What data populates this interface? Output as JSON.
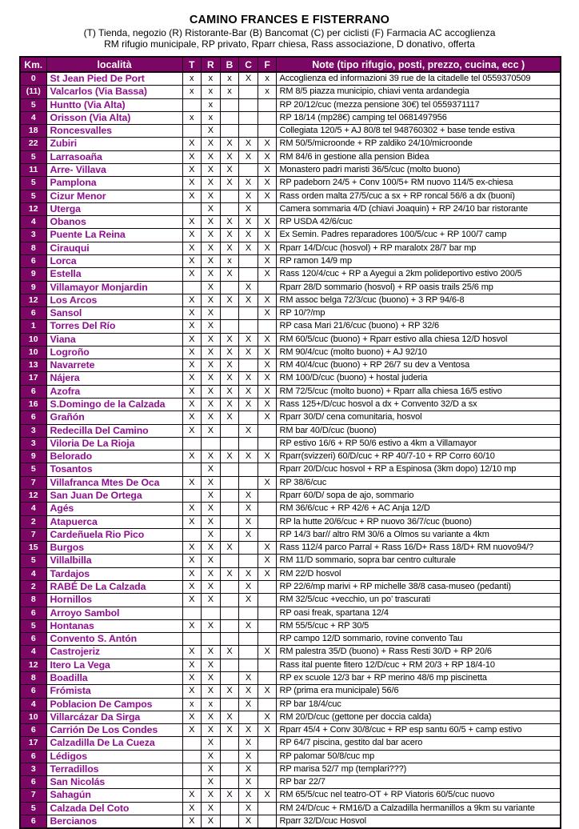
{
  "colors": {
    "accent": "#7b0663",
    "locality_text": "#8e108e",
    "border": "#140310"
  },
  "title_block": {
    "title": "CAMINO FRANCES E FISTERRANO",
    "legend_line1": "(T) Tienda, negozio (R) Ristorante-Bar (B) Bancomat (C) per ciclisti (F) Farmacia AC accoglienza",
    "legend_line2": "RM rifugio municipale, RP privato, Rparr chiesa, Rass associazione, D donativo, offerta"
  },
  "table": {
    "headers": {
      "km": "Km.",
      "locality": "località",
      "t": "T",
      "r": "R",
      "b": "B",
      "c": "C",
      "f": "F",
      "note": "Note (tipo rifugio, posti, prezzo, cucina, ecc )"
    },
    "rows": [
      {
        "km": "0",
        "name": "St Jean Pied De Port",
        "t": "x",
        "r": "x",
        "b": "x",
        "c": "X",
        "f": "x",
        "note": "Accoglienza ed informazioni 39 rue de la citadelle tel 0559370509"
      },
      {
        "km": "(11)",
        "name": "Valcarlos (Via Bassa)",
        "t": "x",
        "r": "x",
        "b": "x",
        "c": "",
        "f": "x",
        "note": "RM 8/5 piazza municipio, chiavi venta ardandegia"
      },
      {
        "km": "5",
        "name": "Huntto (Via Alta)",
        "t": "",
        "r": "x",
        "b": "",
        "c": "",
        "f": "",
        "note": "RP 20/12/cuc (mezza pensione 30€) tel 0559371117"
      },
      {
        "km": "4",
        "name": "Orisson (Via Alta)",
        "t": "x",
        "r": "x",
        "b": "",
        "c": "",
        "f": "",
        "note": "RP 18/14 (mp28€) camping tel 0681497956"
      },
      {
        "km": "18",
        "name": "Roncesvalles",
        "t": "",
        "r": "X",
        "b": "",
        "c": "",
        "f": "",
        "note": "Collegiata 120/5 + AJ 80/8 tel 948760302 + base tende estiva"
      },
      {
        "km": "22",
        "name": "Zubiri",
        "t": "X",
        "r": "X",
        "b": "X",
        "c": "X",
        "f": "X",
        "note": "RM 50/5/microonde + RP zaldiko 24/10/microonde"
      },
      {
        "km": "5",
        "name": "Larrasoaña",
        "t": "X",
        "r": "X",
        "b": "X",
        "c": "X",
        "f": "X",
        "note": "RM 84/6 in gestione alla pension Bidea"
      },
      {
        "km": "11",
        "name": "Arre- Villava",
        "t": "X",
        "r": "X",
        "b": "X",
        "c": "",
        "f": "X",
        "note": "Monastero padri maristi 36/5/cuc (molto buono)"
      },
      {
        "km": "5",
        "name": "Pamplona",
        "t": "X",
        "r": "X",
        "b": "X",
        "c": "X",
        "f": "X",
        "note": "RP padeborn 24/5 + Conv 100/5+ RM nuovo 114/5 ex-chiesa"
      },
      {
        "km": "5",
        "name": "Cizur Menor",
        "t": "X",
        "r": "X",
        "b": "",
        "c": "X",
        "f": "X",
        "note": "Rass orden malta 27/5/cuc a sx + RP roncal 56/6 a dx (buoni)"
      },
      {
        "km": "12",
        "name": "Uterga",
        "t": "",
        "r": "X",
        "b": "",
        "c": "X",
        "f": "",
        "note": "Camera sommaria 4/D (chiavi Joaquin) +  RP 24/10 bar ristorante"
      },
      {
        "km": "4",
        "name": "Obanos",
        "t": "X",
        "r": "X",
        "b": "X",
        "c": "X",
        "f": "X",
        "note": "RP USDA 42/6/cuc"
      },
      {
        "km": "3",
        "name": "Puente La Reina",
        "t": "X",
        "r": "X",
        "b": "X",
        "c": "X",
        "f": "X",
        "note": "Ex Semin. Padres reparadores 100/5/cuc  + RP 100/7 camp"
      },
      {
        "km": "8",
        "name": "Cirauqui",
        "t": "X",
        "r": "X",
        "b": "X",
        "c": "X",
        "f": "X",
        "note": "Rparr 14/D/cuc (hosvol) + RP maralotx 28/7 bar mp"
      },
      {
        "km": "6",
        "name": "Lorca",
        "t": "X",
        "r": "X",
        "b": "x",
        "c": "",
        "f": "X",
        "note": "RP ramon 14/9 mp"
      },
      {
        "km": "9",
        "name": "Estella",
        "t": "X",
        "r": "X",
        "b": "X",
        "c": "",
        "f": "X",
        "note": "Rass 120/4/cuc + RP a Ayegui a 2km polideportivo estivo 200/5"
      },
      {
        "km": "9",
        "name": "Villamayor Monjardin",
        "t": "",
        "r": "X",
        "b": "",
        "c": "X",
        "f": "",
        "note": "Rparr 28/D sommario (hosvol) + RP oasis trails 25/6 mp"
      },
      {
        "km": "12",
        "name": "Los Arcos",
        "t": "X",
        "r": "X",
        "b": "X",
        "c": "X",
        "f": "X",
        "note": "RM assoc belga 72/3/cuc (buono) + 3 RP 94/6-8"
      },
      {
        "km": "6",
        "name": "Sansol",
        "t": "X",
        "r": "X",
        "b": "",
        "c": "",
        "f": "X",
        "note": "RP 10/?/mp"
      },
      {
        "km": "1",
        "name": "Torres Del Río",
        "t": "X",
        "r": "X",
        "b": "",
        "c": "",
        "f": "",
        "note": "RP casa Mari 21/6/cuc (buono) + RP 32/6"
      },
      {
        "km": "10",
        "name": "Viana",
        "t": "X",
        "r": "X",
        "b": "X",
        "c": "X",
        "f": "X",
        "note": "RM 60/5/cuc (buono) + Rparr estivo alla chiesa 12/D hosvol"
      },
      {
        "km": "10",
        "name": "Logroño",
        "t": "X",
        "r": "X",
        "b": "X",
        "c": "X",
        "f": "X",
        "note": "RM 90/4/cuc (molto buono) +  AJ 92/10"
      },
      {
        "km": "13",
        "name": "Navarrete",
        "t": "X",
        "r": "X",
        "b": "X",
        "c": "",
        "f": "X",
        "note": "RM 40/4/cuc (buono) + RP 26/7 su dev a Ventosa"
      },
      {
        "km": "17",
        "name": "Nájera",
        "t": "X",
        "r": "X",
        "b": "X",
        "c": "X",
        "f": "X",
        "note": "RM 100/D/cuc (buono) + hostal juderia"
      },
      {
        "km": "6",
        "name": "Azofra",
        "t": "X",
        "r": "X",
        "b": "X",
        "c": "X",
        "f": "X",
        "note": "RM 72/5/cuc (molto buono) + Rparr alla chiesa 16/5 estivo"
      },
      {
        "km": "16",
        "name": "S.Domingo de la Calzada",
        "t": "X",
        "r": "X",
        "b": "X",
        "c": "X",
        "f": "X",
        "note": "Rass 125+/D/cuc hosvol  a dx + Convento 32/D a sx"
      },
      {
        "km": "6",
        "name": "Grañón",
        "t": "X",
        "r": "X",
        "b": "X",
        "c": "",
        "f": "X",
        "note": "Rparr 30/D/ cena comunitaria, hosvol"
      },
      {
        "km": "3",
        "name": "Redecilla Del Camino",
        "t": "X",
        "r": "X",
        "b": "",
        "c": "X",
        "f": "",
        "note": "RM bar 40/D/cuc (buono)"
      },
      {
        "km": "3",
        "name": "Viloria De La Rioja",
        "t": "",
        "r": "",
        "b": "",
        "c": "",
        "f": "",
        "note": "RP estivo 16/6 + RP 50/6 estivo a 4km a Villamayor"
      },
      {
        "km": "9",
        "name": "Belorado",
        "t": "X",
        "r": "X",
        "b": "X",
        "c": "X",
        "f": "X",
        "note": "Rparr(svizzeri) 60/D/cuc + RP 40/7-10 + RP Corro 60/10"
      },
      {
        "km": "5",
        "name": "Tosantos",
        "t": "",
        "r": "X",
        "b": "",
        "c": "",
        "f": "",
        "note": "Rparr 20/D/cuc hosvol + RP a Espinosa (3km dopo) 12/10 mp"
      },
      {
        "km": "7",
        "name": "Villafranca Mtes De Oca",
        "t": "X",
        "r": "X",
        "b": "",
        "c": "",
        "f": "X",
        "note": "RP 38/6/cuc"
      },
      {
        "km": "12",
        "name": "San Juan De Ortega",
        "t": "",
        "r": "X",
        "b": "",
        "c": "X",
        "f": "",
        "note": "Rparr 60/D/ sopa de ajo, sommario"
      },
      {
        "km": "4",
        "name": "Agés",
        "t": "X",
        "r": "X",
        "b": "",
        "c": "X",
        "f": "",
        "note": "RM 36/6/cuc + RP 42/6 + AC Anja 12/D"
      },
      {
        "km": "2",
        "name": "Atapuerca",
        "t": "X",
        "r": "X",
        "b": "",
        "c": "X",
        "f": "",
        "note": "RP la hutte 20/6/cuc + RP nuovo 36/7/cuc (buono)"
      },
      {
        "km": "7",
        "name": "Cardeñuela Rio Pico",
        "t": "",
        "r": "X",
        "b": "",
        "c": "X",
        "f": "",
        "note": "RP 14/3 bar// altro RM 30/6 a Olmos su variante a 4km"
      },
      {
        "km": "15",
        "name": "Burgos",
        "t": "X",
        "r": "X",
        "b": "X",
        "c": "",
        "f": "X",
        "note": "Rass 112/4 parco Parral + Rass 16/D+ Rass 18/D+ RM nuovo94/?"
      },
      {
        "km": "5",
        "name": "Villalbilla",
        "t": "X",
        "r": "X",
        "b": "",
        "c": "",
        "f": "X",
        "note": "RM 11/D sommario, sopra bar centro culturale"
      },
      {
        "km": "4",
        "name": "Tardajos",
        "t": "X",
        "r": "X",
        "b": "X",
        "c": "X",
        "f": "X",
        "note": "RM 22/D hosvol"
      },
      {
        "km": "2",
        "name": "RABÉ De La Calzada",
        "t": "X",
        "r": "X",
        "b": "",
        "c": "X",
        "f": "",
        "note": "RP 22/6/mp marivi + RP michelle 38/8 casa-museo (pedanti)"
      },
      {
        "km": "8",
        "name": "Hornillos",
        "t": "X",
        "r": "X",
        "b": "",
        "c": "X",
        "f": "",
        "note": "RM 32/5/cuc +vecchio, un po’ trascurati"
      },
      {
        "km": "6",
        "name": "Arroyo Sambol",
        "t": "",
        "r": "",
        "b": "",
        "c": "",
        "f": "",
        "note": "RP oasi freak, spartana 12/4"
      },
      {
        "km": "5",
        "name": "Hontanas",
        "t": "X",
        "r": "X",
        "b": "",
        "c": "X",
        "f": "",
        "note": "RM 55/5/cuc + RP 30/5"
      },
      {
        "km": "6",
        "name": "Convento S. Antón",
        "t": "",
        "r": "",
        "b": "",
        "c": "",
        "f": "",
        "note": "RP campo 12/D sommario, rovine convento Tau"
      },
      {
        "km": "4",
        "name": "Castrojeriz",
        "t": "X",
        "r": "X",
        "b": "X",
        "c": "",
        "f": "X",
        "note": "RM palestra 35/D (buono) + Rass Resti 30/D + RP 20/6"
      },
      {
        "km": "12",
        "name": "Itero La Vega",
        "t": "X",
        "r": "X",
        "b": "",
        "c": "",
        "f": "",
        "note": "Rass ital puente fitero 12/D/cuc + RM 20/3 + RP 18/4-10"
      },
      {
        "km": "8",
        "name": "Boadilla",
        "t": "X",
        "r": "X",
        "b": "",
        "c": "X",
        "f": "",
        "note": "RP ex scuole 12/3 bar + RP merino 48/6 mp piscinetta"
      },
      {
        "km": "6",
        "name": "Frómista",
        "t": "X",
        "r": "X",
        "b": "X",
        "c": "X",
        "f": "X",
        "note": "RP (prima era municipale) 56/6"
      },
      {
        "km": "4",
        "name": "Poblacion De Campos",
        "t": "x",
        "r": "x",
        "b": "",
        "c": "X",
        "f": "",
        "note": "RP bar 18/4/cuc"
      },
      {
        "km": "10",
        "name": "Villarcázar Da Sirga",
        "t": "X",
        "r": "X",
        "b": "X",
        "c": "",
        "f": "X",
        "note": "RM 20/D/cuc (gettone per doccia calda)"
      },
      {
        "km": "6",
        "name": "Carrión De Los Condes",
        "t": "X",
        "r": "X",
        "b": "X",
        "c": "X",
        "f": "X",
        "note": "Rparr 45/4 + Conv 30/8/cuc + RP esp santu 60/5 + camp estivo"
      },
      {
        "km": "17",
        "name": "Calzadilla De La Cueza",
        "t": "",
        "r": "X",
        "b": "",
        "c": "X",
        "f": "",
        "note": "RP 64/7 piscina, gestito dal bar acero"
      },
      {
        "km": "6",
        "name": "Lédigos",
        "t": "",
        "r": "X",
        "b": "",
        "c": "X",
        "f": "",
        "note": "RP palomar 50/8/cuc mp"
      },
      {
        "km": "3",
        "name": "Terradillos",
        "t": "",
        "r": "X",
        "b": "",
        "c": "X",
        "f": "",
        "note": "RP marisa 52/7 mp (templari???)"
      },
      {
        "km": "6",
        "name": "San Nicolás",
        "t": "",
        "r": "X",
        "b": "",
        "c": "X",
        "f": "",
        "note": "RP bar 22/7"
      },
      {
        "km": "7",
        "name": "Sahagún",
        "t": "X",
        "r": "X",
        "b": "X",
        "c": "X",
        "f": "X",
        "note": "RM 65/5/cuc nel teatro-OT + RP Viatoris 60/5/cuc nuovo"
      },
      {
        "km": "5",
        "name": "Calzada Del Coto",
        "t": "X",
        "r": "X",
        "b": "",
        "c": "X",
        "f": "",
        "note": "RM 24/D/cuc + RM16/D a Calzadilla hermanillos a 9km su variante"
      },
      {
        "km": "6",
        "name": "Bercianos",
        "t": "X",
        "r": "X",
        "b": "",
        "c": "X",
        "f": "",
        "note": "Rparr 32/D/cuc Hosvol"
      }
    ]
  }
}
